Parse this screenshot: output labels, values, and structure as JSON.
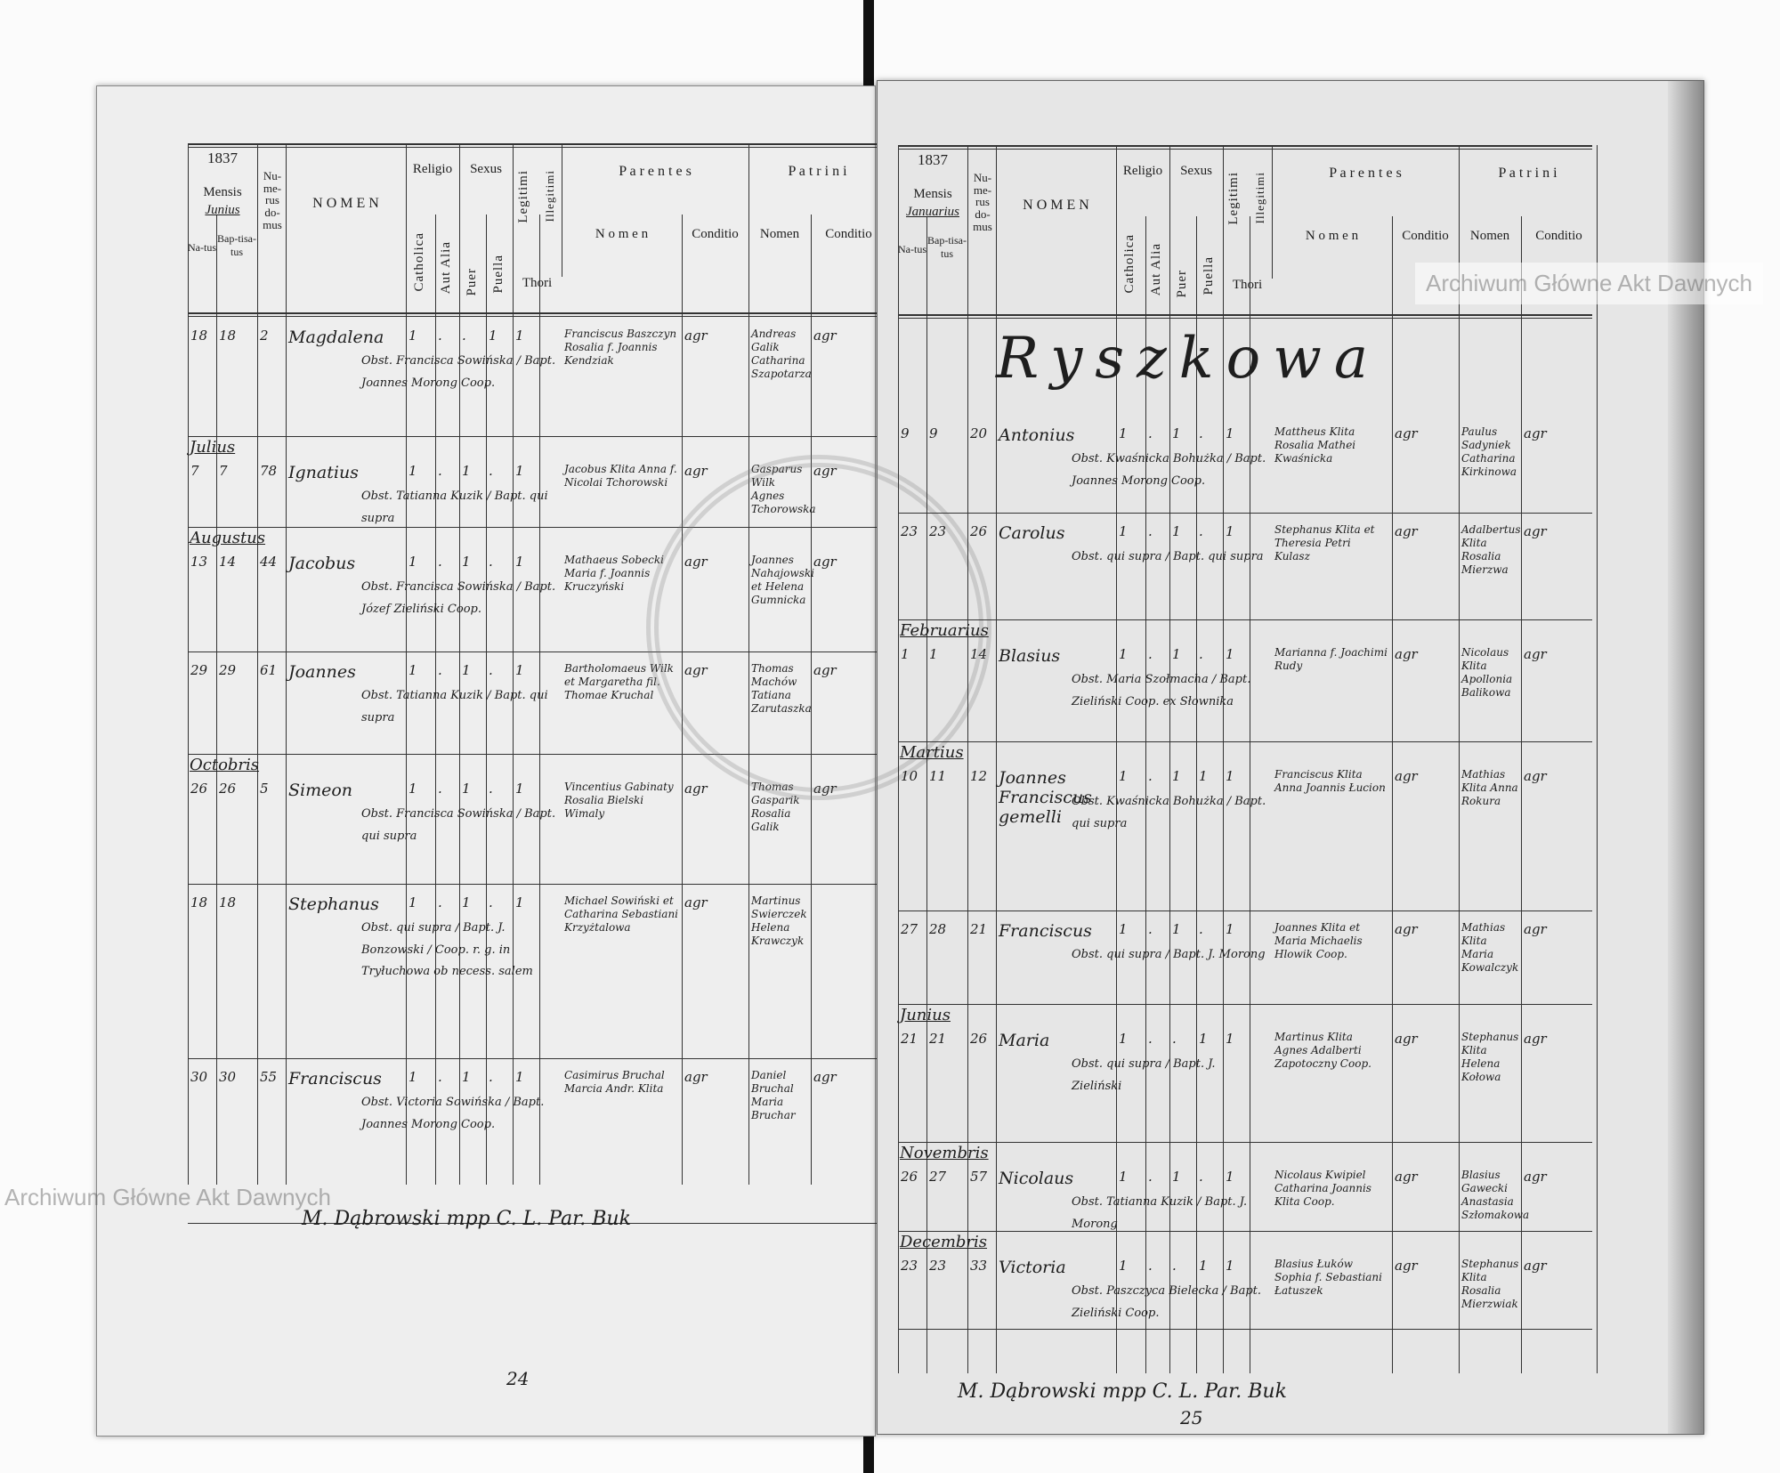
{
  "watermark": "Archiwum Główne Akt Dawnych",
  "stamp_text": "ARCHIWUM GŁÓWNE AKT DAWNYCH",
  "header": {
    "mensis": "Mensis",
    "natus": "Na-tus",
    "baptisatus": "Bap-tisa-tus",
    "numerus_domus": "Nu-me-rus do-mus",
    "nomen": "N O M E N",
    "religio": "Religio",
    "catholica": "Catholica",
    "aut_alia": "Aut Alia",
    "sexus": "Sexus",
    "puer": "Puer",
    "puella": "Puella",
    "legitimi": "Legitimi",
    "illegitimi": "Illegitimi",
    "thori": "Thori",
    "parentes": "P a r e n t e s",
    "patrini": "P a t r i n i",
    "col_nomen": "N o m e n",
    "col_conditio": "Conditio",
    "col_nomen2": "Nomen",
    "col_conditio2": "Conditio"
  },
  "left": {
    "year": "1837",
    "mensis_value": "Junius",
    "rows": [
      {
        "month": "",
        "natus": "18",
        "bapt": "18",
        "domus": "2",
        "nomen": "Magdalena",
        "cath": "1",
        "aut": ".",
        "puer": ".",
        "puella": "1",
        "leg": "1",
        "parents": "Franciscus Baszczyn Rosalia f. Joannis Kendziak",
        "par_cond": "agr",
        "patrini": "Andreas Galik Catharina Szapotarza",
        "pat_cond": "agr",
        "note": "Obst. Francisca Sowińska / Bapt. Joannes Morong Coop."
      },
      {
        "month": "Julius",
        "natus": "7",
        "bapt": "7",
        "domus": "78",
        "nomen": "Ignatius",
        "cath": "1",
        "aut": ".",
        "puer": "1",
        "puella": ".",
        "leg": "1",
        "parents": "Jacobus Klita Anna f. Nicolai Tchorowski",
        "par_cond": "agr",
        "patrini": "Gasparus Wilk Agnes Tchorowska",
        "pat_cond": "agr",
        "note": "Obst. Tatianna Kuzik / Bapt. qui supra"
      },
      {
        "month": "Augustus",
        "natus": "13",
        "bapt": "14",
        "domus": "44",
        "nomen": "Jacobus",
        "cath": "1",
        "aut": ".",
        "puer": "1",
        "puella": ".",
        "leg": "1",
        "parents": "Mathaeus Sobecki Maria f. Joannis Kruczyński",
        "par_cond": "agr",
        "patrini": "Joannes Nahajowski et Helena Gumnicka",
        "pat_cond": "agr",
        "note": "Obst. Francisca Sowińska / Bapt. Józef Zieliński Coop."
      },
      {
        "month": "",
        "natus": "29",
        "bapt": "29",
        "domus": "61",
        "nomen": "Joannes",
        "cath": "1",
        "aut": ".",
        "puer": "1",
        "puella": ".",
        "leg": "1",
        "parents": "Bartholomaeus Wilk et Margaretha fil. Thomae Kruchal",
        "par_cond": "agr",
        "patrini": "Thomas Machów Tatiana Zarutaszka",
        "pat_cond": "agr",
        "note": "Obst. Tatianna Kuzik / Bapt. qui supra"
      },
      {
        "month": "Octobris",
        "natus": "26",
        "bapt": "26",
        "domus": "5",
        "nomen": "Simeon",
        "cath": "1",
        "aut": ".",
        "puer": "1",
        "puella": ".",
        "leg": "1",
        "parents": "Vincentius Gabinaty Rosalia Bielski Wimaly",
        "par_cond": "agr",
        "patrini": "Thomas Gasparik Rosalia Galik",
        "pat_cond": "agr",
        "note": "Obst. Francisca Sowińska / Bapt. qui supra"
      },
      {
        "month": "",
        "natus": "18",
        "bapt": "18",
        "domus": "",
        "nomen": "Stephanus",
        "cath": "1",
        "aut": ".",
        "puer": "1",
        "puella": ".",
        "leg": "1",
        "parents": "Michael Sowiński et Catharina Sebastiani Krzyżtalowa",
        "par_cond": "agr",
        "patrini": "Martinus Swierczek Helena Krawczyk",
        "pat_cond": "",
        "note": "Obst. qui supra / Bapt. J. Bonzowski / Coop. r. g. in Tryłuchowa ob necess. salem"
      },
      {
        "month": "",
        "natus": "30",
        "bapt": "30",
        "domus": "55",
        "nomen": "Franciscus",
        "cath": "1",
        "aut": ".",
        "puer": "1",
        "puella": ".",
        "leg": "1",
        "parents": "Casimirus Bruchal Marcia Andr. Klita",
        "par_cond": "agr",
        "patrini": "Daniel Bruchal Maria Bruchar",
        "pat_cond": "agr",
        "note": "Obst. Victoria Sowińska / Bapt. Joannes Morong Coop."
      }
    ],
    "signature": "M. Dąbrowski mpp C. L. Par. Buk",
    "page_number": "24"
  },
  "right": {
    "year": "1837",
    "mensis_value": "Januarius",
    "place": "Ryszkowa",
    "rows": [
      {
        "month": "",
        "natus": "9",
        "bapt": "9",
        "domus": "20",
        "nomen": "Antonius",
        "cath": "1",
        "aut": ".",
        "puer": "1",
        "puella": ".",
        "leg": "1",
        "parents": "Mattheus Klita Rosalia Mathei Kwaśnicka",
        "par_cond": "agr",
        "patrini": "Paulus Sadyniek Catharina Kirkinowa",
        "pat_cond": "agr",
        "note": "Obst. Kwaśnicka Bohużka / Bapt. Joannes Morong Coop."
      },
      {
        "month": "",
        "natus": "23",
        "bapt": "23",
        "domus": "26",
        "nomen": "Carolus",
        "cath": "1",
        "aut": ".",
        "puer": "1",
        "puella": ".",
        "leg": "1",
        "parents": "Stephanus Klita et Theresia Petri Kulasz",
        "par_cond": "agr",
        "patrini": "Adalbertus Klita Rosalia Mierzwa",
        "pat_cond": "agr",
        "note": "Obst. qui supra / Bapt. qui supra"
      },
      {
        "month": "Februarius",
        "natus": "1",
        "bapt": "1",
        "domus": "14",
        "nomen": "Blasius",
        "cath": "1",
        "aut": ".",
        "puer": "1",
        "puella": ".",
        "leg": "1",
        "parents": "Marianna f. Joachimi Rudy",
        "par_cond": "agr",
        "patrini": "Nicolaus Klita Apollonia Balikowa",
        "pat_cond": "agr",
        "note": "Obst. Maria Szołmacha / Bapt. Zieliński Coop. ex Słownika"
      },
      {
        "month": "Martius",
        "natus": "10",
        "bapt": "11",
        "domus": "12",
        "nomen": "Joannes Franciscus gemelli",
        "cath": "1",
        "aut": ".",
        "puer": "1",
        "puella": "1",
        "leg": "1",
        "parents": "Franciscus Klita Anna Joannis Łucion",
        "par_cond": "agr",
        "patrini": "Mathias Klita Anna Rokura",
        "pat_cond": "agr",
        "note": "Obst. Kwaśnicka Bohużka / Bapt. qui supra"
      },
      {
        "month": "",
        "natus": "27",
        "bapt": "28",
        "domus": "21",
        "nomen": "Franciscus",
        "cath": "1",
        "aut": ".",
        "puer": "1",
        "puella": ".",
        "leg": "1",
        "parents": "Joannes Klita et Maria Michaelis Hlowik Coop.",
        "par_cond": "agr",
        "patrini": "Mathias Klita Maria Kowalczyk",
        "pat_cond": "agr",
        "note": "Obst. qui supra / Bapt. J. Morong"
      },
      {
        "month": "Junius",
        "natus": "21",
        "bapt": "21",
        "domus": "26",
        "nomen": "Maria",
        "cath": "1",
        "aut": ".",
        "puer": ".",
        "puella": "1",
        "leg": "1",
        "parents": "Martinus Klita Agnes Adalberti Zapotoczny Coop.",
        "par_cond": "agr",
        "patrini": "Stephanus Klita Helena Kołowa",
        "pat_cond": "agr",
        "note": "Obst. qui supra / Bapt. J. Zieliński"
      },
      {
        "month": "Novembris",
        "natus": "26",
        "bapt": "27",
        "domus": "57",
        "nomen": "Nicolaus",
        "cath": "1",
        "aut": ".",
        "puer": "1",
        "puella": ".",
        "leg": "1",
        "parents": "Nicolaus Kwipiel Catharina Joannis Klita Coop.",
        "par_cond": "agr",
        "patrini": "Blasius Gawecki Anastasia Szłomakowa",
        "pat_cond": "agr",
        "note": "Obst. Tatianna Kuzik / Bapt. J. Morong"
      },
      {
        "month": "Decembris",
        "natus": "23",
        "bapt": "23",
        "domus": "33",
        "nomen": "Victoria",
        "cath": "1",
        "aut": ".",
        "puer": ".",
        "puella": "1",
        "leg": "1",
        "parents": "Blasius Łuków Sophia f. Sebastiani Łatuszek",
        "par_cond": "agr",
        "patrini": "Stephanus Klita Rosalia Mierzwiak",
        "pat_cond": "agr",
        "note": "Obst. Paszczyca Bielecka / Bapt. Zieliński Coop."
      }
    ],
    "signature": "M. Dąbrowski mpp C. L. Par. Buk",
    "page_number": "25"
  }
}
